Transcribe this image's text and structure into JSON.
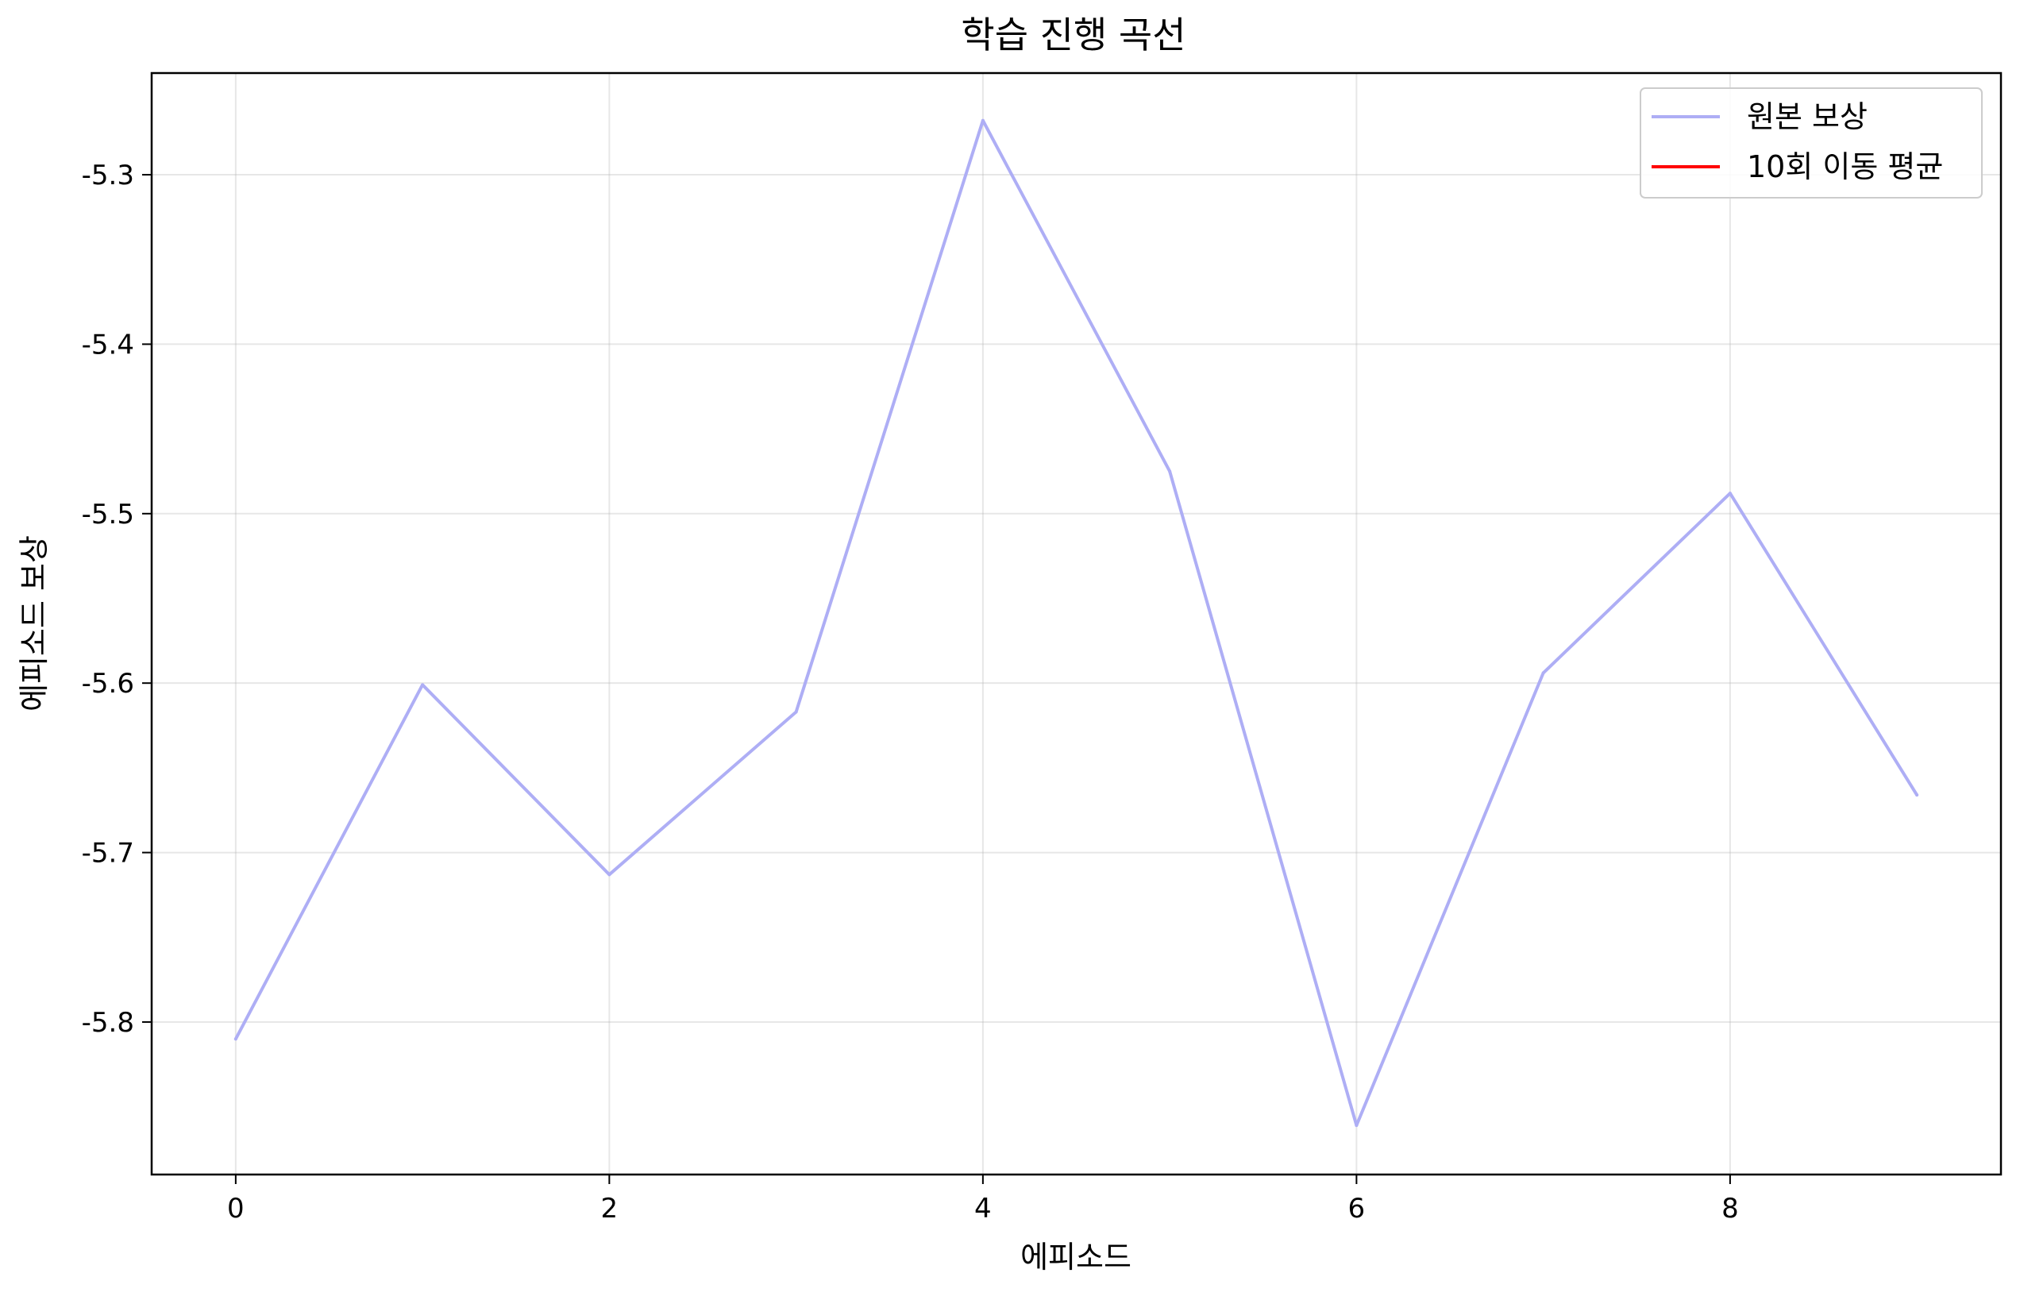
{
  "chart_data": {
    "type": "line",
    "title": "학습 진행 곡선",
    "xlabel": "에피소드",
    "ylabel": "에피소드 보상",
    "xlim": [
      -0.45,
      9.45
    ],
    "ylim": [
      -5.89,
      -5.24
    ],
    "xticks": [
      0,
      2,
      4,
      6,
      8
    ],
    "yticks": [
      -5.3,
      -5.4,
      -5.5,
      -5.6,
      -5.7,
      -5.8
    ],
    "xtick_labels": [
      "0",
      "2",
      "4",
      "6",
      "8"
    ],
    "ytick_labels": [
      "-5.3",
      "-5.4",
      "-5.5",
      "-5.6",
      "-5.7",
      "-5.8"
    ],
    "grid": true,
    "legend_position": "top-right",
    "series": [
      {
        "name": "원본 보상",
        "color": "#aeaef5",
        "x": [
          0,
          1,
          2,
          3,
          4,
          5,
          6,
          7,
          8,
          9
        ],
        "values": [
          -5.81,
          -5.601,
          -5.713,
          -5.617,
          -5.268,
          -5.475,
          -5.861,
          -5.594,
          -5.488,
          -5.666
        ]
      },
      {
        "name": "10회 이동 평균",
        "color": "#ff0000",
        "x": [],
        "values": []
      }
    ]
  }
}
